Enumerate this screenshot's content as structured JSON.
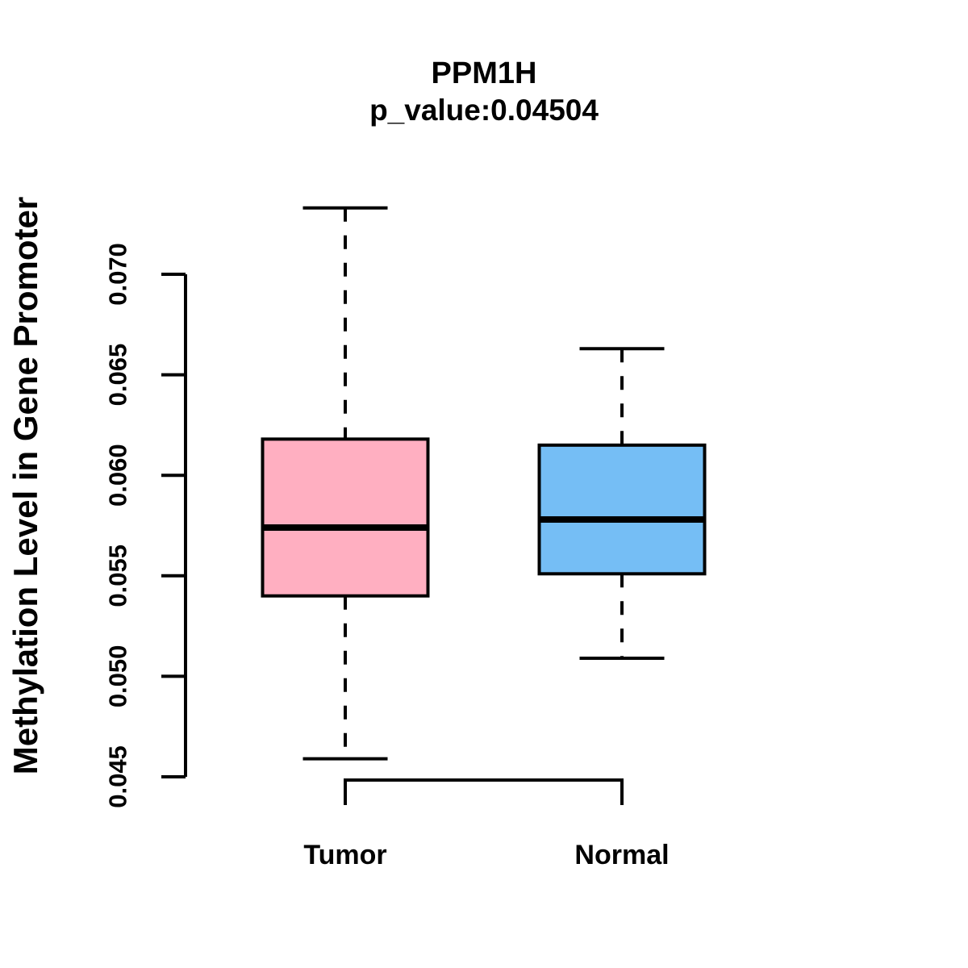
{
  "chart_data": {
    "type": "boxplot",
    "title": "PPM1H",
    "subtitle": "p_value:0.04504",
    "ylabel": "Methylation Level in Gene Promoter",
    "xlabel": "",
    "categories": [
      "Tumor",
      "Normal"
    ],
    "ylim": [
      0.045,
      0.07
    ],
    "yticks": [
      0.045,
      0.05,
      0.055,
      0.06,
      0.065,
      0.07
    ],
    "ytick_labels": [
      "0.045",
      "0.050",
      "0.055",
      "0.060",
      "0.065",
      "0.070"
    ],
    "grid": false,
    "legend_position": "none",
    "outliers": [],
    "series": [
      {
        "name": "Tumor",
        "box_color": "#ffafc1",
        "border_color": "#000000",
        "lower_whisker": 0.0459,
        "q1": 0.054,
        "median": 0.0574,
        "q3": 0.0618,
        "upper_whisker": 0.0733
      },
      {
        "name": "Normal",
        "box_color": "#75bef5",
        "border_color": "#000000",
        "lower_whisker": 0.0509,
        "q1": 0.0551,
        "median": 0.0578,
        "q3": 0.0615,
        "upper_whisker": 0.0663
      }
    ]
  }
}
